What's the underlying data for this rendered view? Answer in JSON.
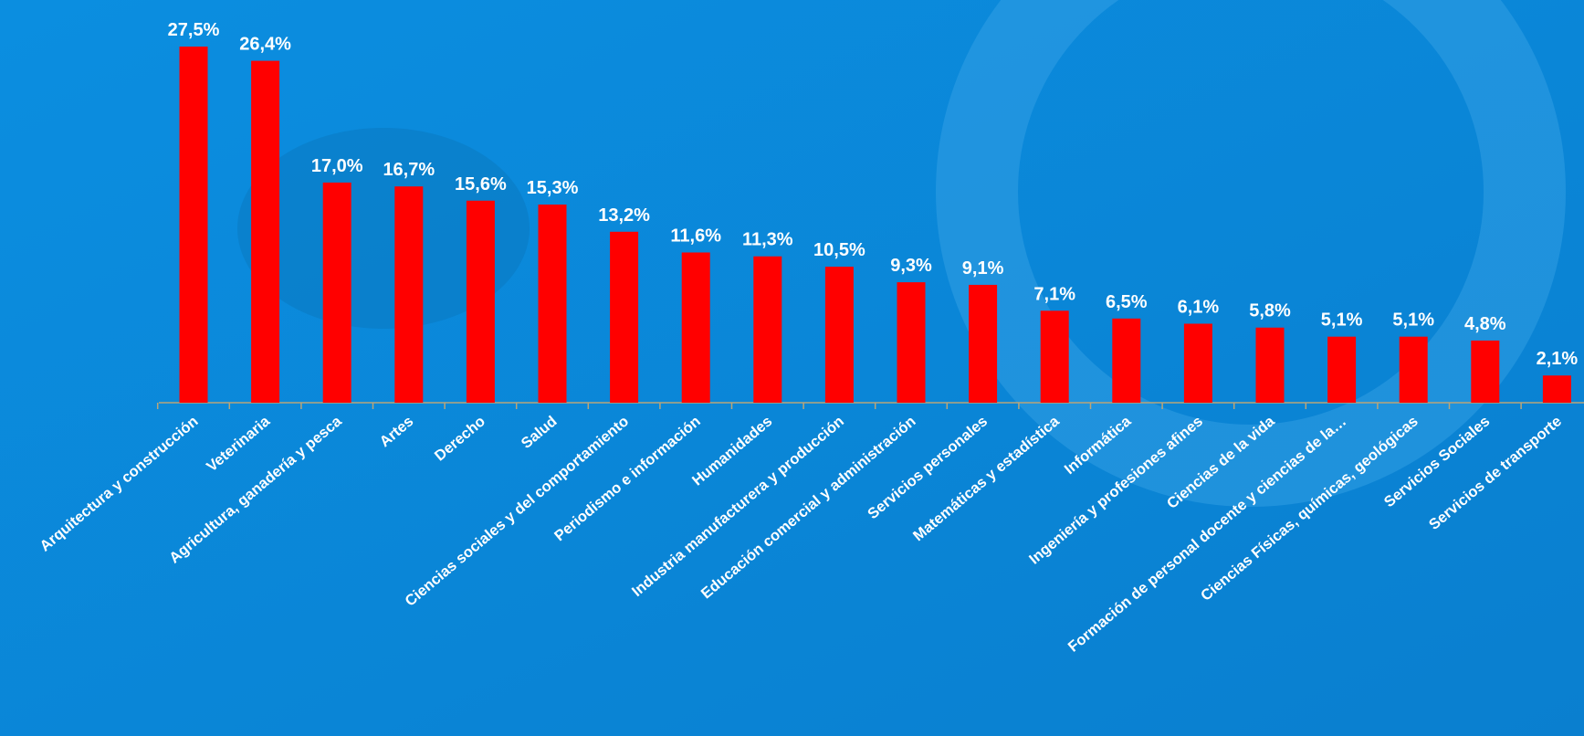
{
  "chart_data": {
    "type": "bar",
    "categories": [
      "Arquitectura y construcción",
      "Veterinaria",
      "Agricultura, ganadería y pesca",
      "Artes",
      "Derecho",
      "Salud",
      "Ciencias sociales y del comportamiento",
      "Periodismo e información",
      "Humanidades",
      "Industria manufacturera y producción",
      "Educación comercial y administración",
      "Servicios personales",
      "Matemáticas y estadística",
      "Informática",
      "Ingeniería y profesiones afines",
      "Ciencias de la vida",
      "Formación de personal docente y ciencias de la…",
      "Ciencias Físicas, químicas, geológicas",
      "Servicios Sociales",
      "Servicios de transporte"
    ],
    "values": [
      27.5,
      26.4,
      17.0,
      16.7,
      15.6,
      15.3,
      13.2,
      11.6,
      11.3,
      10.5,
      9.3,
      9.1,
      7.1,
      6.5,
      6.1,
      5.8,
      5.1,
      5.1,
      4.8,
      2.1
    ],
    "value_labels": [
      "27,5%",
      "26,4%",
      "17,0%",
      "16,7%",
      "15,6%",
      "15,3%",
      "13,2%",
      "11,6%",
      "11,3%",
      "10,5%",
      "9,3%",
      "9,1%",
      "7,1%",
      "6,5%",
      "6,1%",
      "5,8%",
      "5,1%",
      "5,1%",
      "4,8%",
      "2,1%"
    ],
    "color": "#ff0000"
  }
}
